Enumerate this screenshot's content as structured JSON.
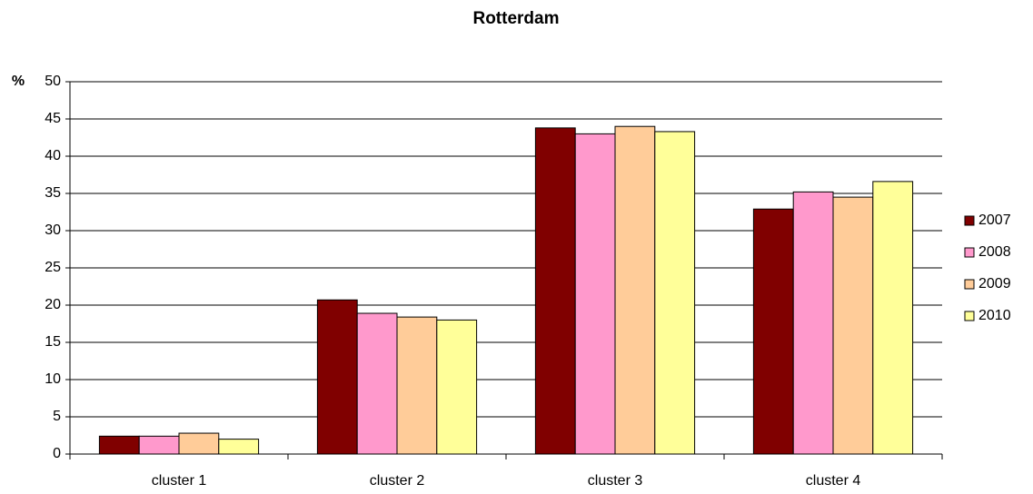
{
  "chart_data": {
    "type": "bar",
    "title": "Rotterdam",
    "y_label": "%",
    "categories": [
      "cluster 1",
      "cluster 2",
      "cluster 3",
      "cluster 4"
    ],
    "series": [
      {
        "name": "2007",
        "color": "#800000",
        "values": [
          2.4,
          20.7,
          43.8,
          32.9
        ]
      },
      {
        "name": "2008",
        "color": "#ff99cc",
        "values": [
          2.4,
          18.9,
          43.0,
          35.2
        ]
      },
      {
        "name": "2009",
        "color": "#ffcc99",
        "values": [
          2.8,
          18.4,
          44.0,
          34.5
        ]
      },
      {
        "name": "2010",
        "color": "#ffff99",
        "values": [
          2.0,
          18.0,
          43.3,
          36.6
        ]
      }
    ],
    "ylim": [
      0,
      50
    ],
    "yticks": [
      0,
      5,
      10,
      15,
      20,
      25,
      30,
      35,
      40,
      45,
      50
    ],
    "grid": true,
    "legend": "right"
  }
}
